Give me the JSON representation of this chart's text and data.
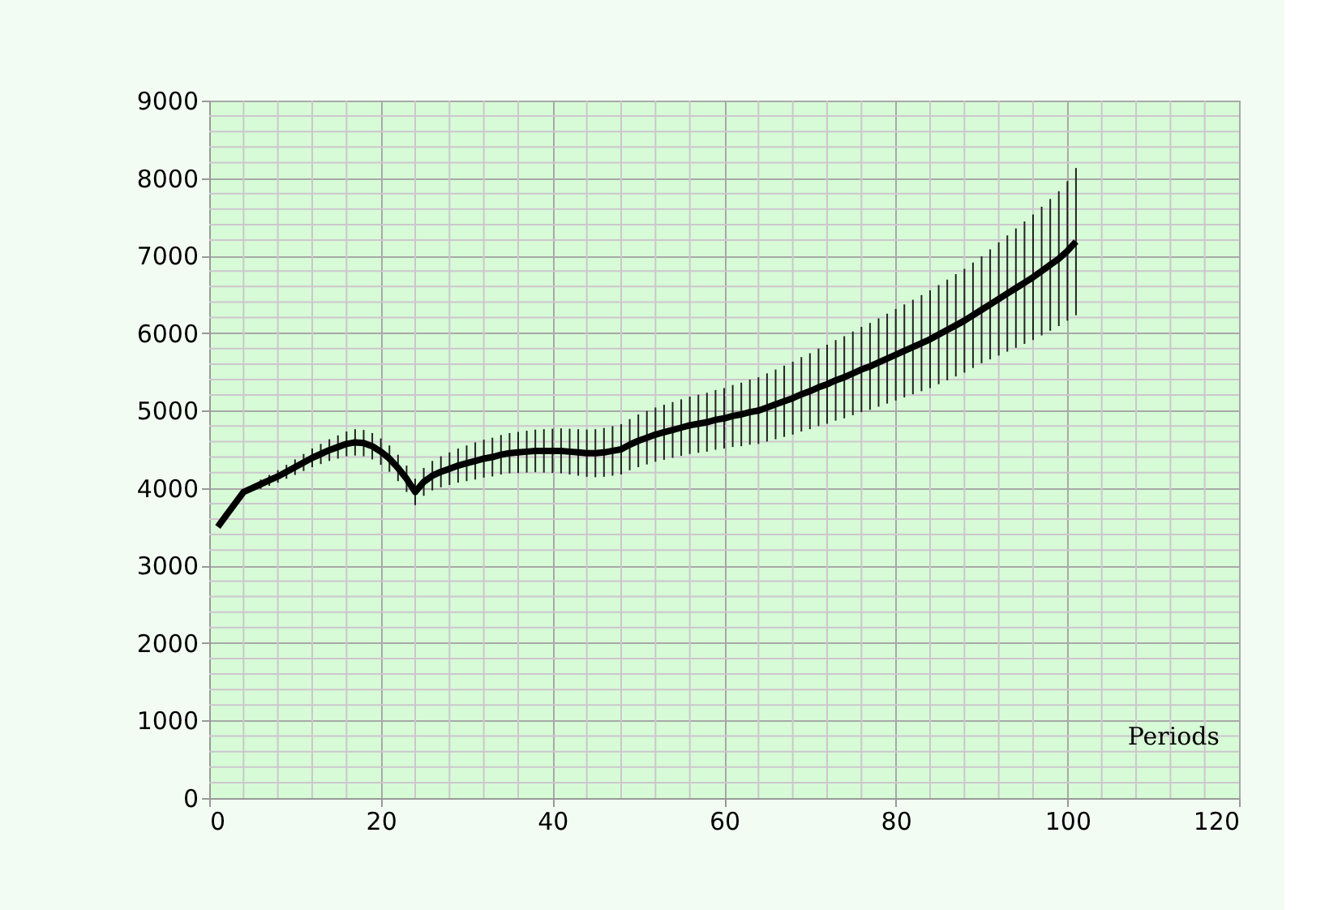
{
  "chart_data": {
    "type": "line",
    "xlabel": "Periods",
    "x": [
      1,
      2,
      3,
      4,
      5,
      6,
      7,
      8,
      9,
      10,
      11,
      12,
      13,
      14,
      15,
      16,
      17,
      18,
      19,
      20,
      21,
      22,
      23,
      24,
      25,
      26,
      27,
      28,
      29,
      30,
      31,
      32,
      33,
      34,
      35,
      36,
      37,
      38,
      39,
      40,
      41,
      42,
      43,
      44,
      45,
      46,
      47,
      48,
      49,
      50,
      51,
      52,
      53,
      54,
      55,
      56,
      57,
      58,
      59,
      60,
      61,
      62,
      63,
      64,
      65,
      66,
      67,
      68,
      69,
      70,
      71,
      72,
      73,
      74,
      75,
      76,
      77,
      78,
      79,
      80,
      81,
      82,
      83,
      84,
      85,
      86,
      87,
      88,
      89,
      90,
      91,
      92,
      93,
      94,
      95,
      96,
      97,
      98,
      99,
      100,
      101
    ],
    "series": [
      {
        "color": "#000000",
        "values": [
          3500,
          3650,
          3800,
          3950,
          4000,
          4050,
          4100,
          4150,
          4210,
          4270,
          4330,
          4390,
          4440,
          4490,
          4530,
          4570,
          4590,
          4580,
          4540,
          4470,
          4380,
          4260,
          4120,
          3950,
          4080,
          4160,
          4210,
          4250,
          4290,
          4320,
          4350,
          4380,
          4400,
          4430,
          4450,
          4460,
          4470,
          4480,
          4480,
          4480,
          4480,
          4470,
          4460,
          4450,
          4450,
          4460,
          4480,
          4500,
          4560,
          4610,
          4650,
          4690,
          4720,
          4750,
          4780,
          4810,
          4830,
          4850,
          4880,
          4900,
          4930,
          4950,
          4980,
          5000,
          5040,
          5080,
          5120,
          5160,
          5210,
          5250,
          5300,
          5340,
          5390,
          5430,
          5480,
          5530,
          5570,
          5620,
          5670,
          5720,
          5770,
          5820,
          5870,
          5920,
          5980,
          6040,
          6100,
          6160,
          6230,
          6300,
          6370,
          6440,
          6510,
          6580,
          6650,
          6720,
          6800,
          6880,
          6960,
          7060,
          7180
        ],
        "errors": [
          null,
          null,
          null,
          null,
          null,
          60,
          70,
          80,
          90,
          100,
          110,
          120,
          130,
          140,
          150,
          160,
          170,
          170,
          170,
          170,
          170,
          170,
          170,
          170,
          180,
          190,
          200,
          210,
          220,
          230,
          240,
          245,
          250,
          255,
          260,
          265,
          270,
          275,
          280,
          285,
          290,
          295,
          300,
          305,
          310,
          315,
          320,
          325,
          330,
          340,
          345,
          350,
          355,
          360,
          365,
          370,
          375,
          380,
          385,
          390,
          400,
          410,
          420,
          430,
          440,
          450,
          460,
          470,
          480,
          490,
          500,
          510,
          520,
          530,
          540,
          550,
          560,
          570,
          580,
          590,
          600,
          610,
          620,
          630,
          640,
          650,
          660,
          670,
          680,
          690,
          710,
          730,
          750,
          770,
          790,
          810,
          830,
          850,
          870,
          900,
          950
        ]
      }
    ],
    "xlim": [
      0,
      120
    ],
    "xticks": [
      0,
      20,
      40,
      60,
      80,
      100,
      120
    ],
    "ylim": [
      0,
      9000
    ],
    "yticks": [
      0,
      1000,
      2000,
      3000,
      4000,
      5000,
      6000,
      7000,
      8000,
      9000
    ],
    "grid": true,
    "marker": "none",
    "line_style": "solid"
  }
}
